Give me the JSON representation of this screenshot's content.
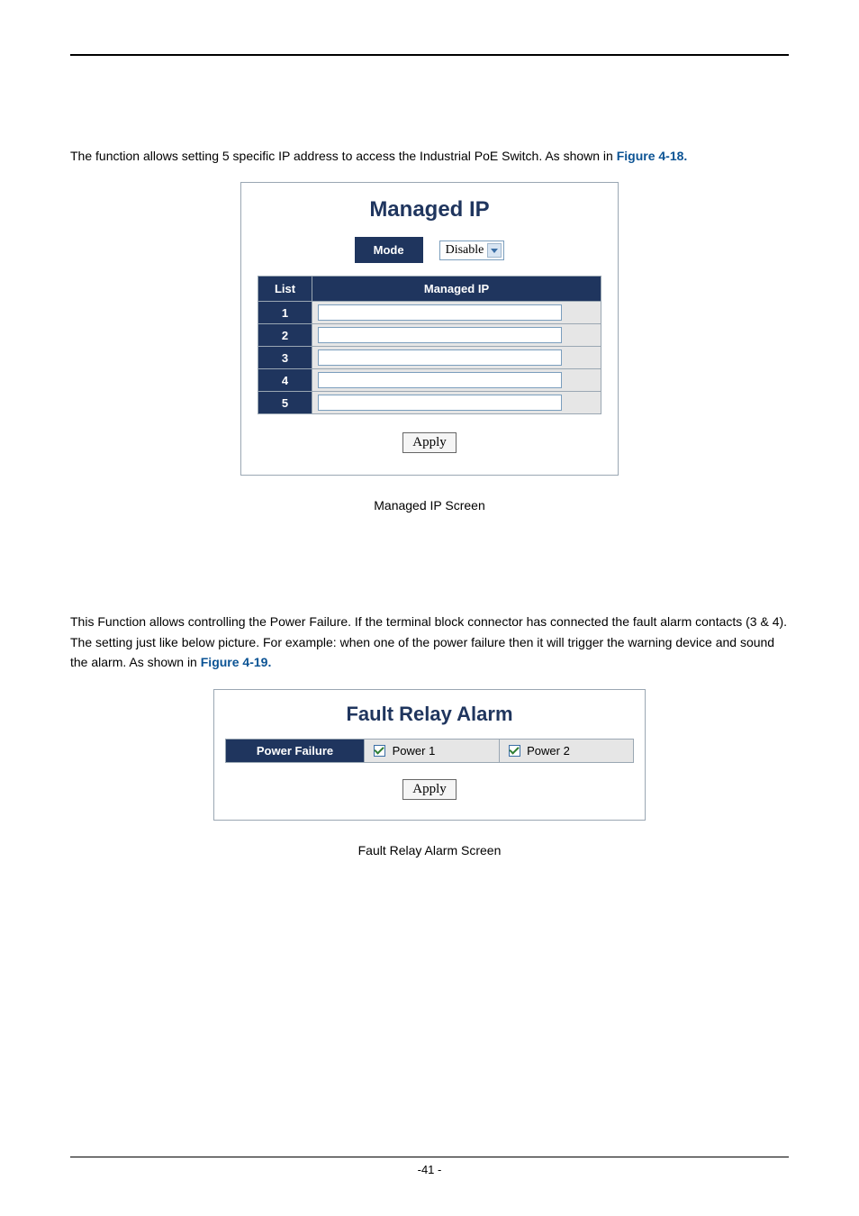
{
  "intro1_a": "The function allows setting 5 specific IP address to access the Industrial PoE Switch. As shown in ",
  "figref1": "Figure 4-18.",
  "managed": {
    "title": "Managed IP",
    "mode_label": "Mode",
    "mode_value": "Disable",
    "col_list": "List",
    "col_ip": "Managed IP",
    "rows": [
      "1",
      "2",
      "3",
      "4",
      "5"
    ],
    "apply_label": "Apply"
  },
  "caption1": "Managed IP Screen",
  "intro2_a": "This Function allows controlling the Power Failure. If the terminal block connector has connected the fault alarm contacts (3 & 4). The setting just like below picture. For example: when one of the power failure then it will trigger the warning device and sound the alarm. As shown in ",
  "figref2": "Figure 4-19.",
  "fault": {
    "title": "Fault Relay Alarm",
    "row_label": "Power Failure",
    "power1_label": "Power 1",
    "power2_label": "Power 2",
    "power1_checked": true,
    "power2_checked": true,
    "apply_label": "Apply"
  },
  "caption2": "Fault Relay Alarm Screen",
  "page_number": "-41 -",
  "colors": {
    "heading": "#1f355e",
    "link": "#0b5394",
    "panel_border": "#9aa7b3",
    "row_alt": "#e6e6e6"
  }
}
